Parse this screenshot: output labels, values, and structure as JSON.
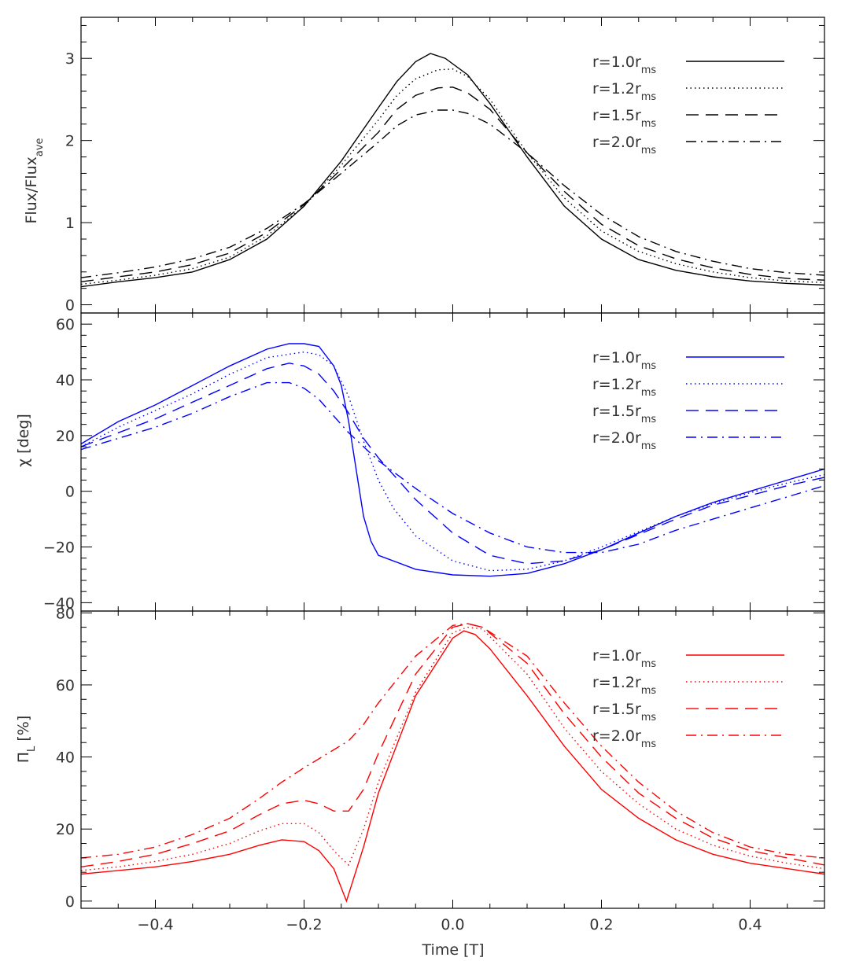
{
  "chart_data": [
    {
      "type": "line",
      "panel": "top",
      "ylabel_main": "Flux/Flux",
      "ylabel_sub": "ave",
      "xlim": [
        -0.5,
        0.5
      ],
      "ylim": [
        -0.1,
        3.5
      ],
      "yticks": [
        0,
        1,
        2,
        3
      ],
      "ytick_labels": [
        "0",
        "1",
        "2",
        "3"
      ],
      "legend_position": "top-right",
      "series": [
        {
          "name": "r=1.0r",
          "sub": "ms",
          "style": "solid",
          "color": "#000000",
          "x": [
            -0.5,
            -0.45,
            -0.4,
            -0.35,
            -0.3,
            -0.25,
            -0.2,
            -0.15,
            -0.1,
            -0.075,
            -0.05,
            -0.03,
            -0.01,
            0.02,
            0.05,
            0.1,
            0.15,
            0.2,
            0.25,
            0.3,
            0.35,
            0.4,
            0.45,
            0.5
          ],
          "y": [
            0.22,
            0.28,
            0.33,
            0.4,
            0.55,
            0.8,
            1.2,
            1.75,
            2.4,
            2.72,
            2.96,
            3.06,
            3.0,
            2.8,
            2.45,
            1.8,
            1.2,
            0.8,
            0.55,
            0.42,
            0.34,
            0.29,
            0.26,
            0.24
          ]
        },
        {
          "name": "r=1.2r",
          "sub": "ms",
          "style": "dotted",
          "color": "#000000",
          "x": [
            -0.5,
            -0.45,
            -0.4,
            -0.35,
            -0.3,
            -0.25,
            -0.2,
            -0.15,
            -0.1,
            -0.075,
            -0.05,
            -0.02,
            0.0,
            0.02,
            0.05,
            0.1,
            0.15,
            0.2,
            0.25,
            0.3,
            0.35,
            0.4,
            0.45,
            0.5
          ],
          "y": [
            0.25,
            0.3,
            0.36,
            0.44,
            0.58,
            0.84,
            1.2,
            1.7,
            2.25,
            2.55,
            2.75,
            2.86,
            2.87,
            2.78,
            2.5,
            1.85,
            1.3,
            0.9,
            0.65,
            0.5,
            0.4,
            0.33,
            0.29,
            0.27
          ]
        },
        {
          "name": "r=1.5r",
          "sub": "ms",
          "style": "dashed",
          "color": "#000000",
          "x": [
            -0.5,
            -0.45,
            -0.4,
            -0.35,
            -0.3,
            -0.25,
            -0.2,
            -0.15,
            -0.1,
            -0.075,
            -0.05,
            -0.02,
            0.0,
            0.02,
            0.05,
            0.1,
            0.15,
            0.2,
            0.25,
            0.3,
            0.35,
            0.4,
            0.45,
            0.5
          ],
          "y": [
            0.28,
            0.34,
            0.4,
            0.49,
            0.63,
            0.88,
            1.22,
            1.65,
            2.1,
            2.38,
            2.55,
            2.64,
            2.65,
            2.58,
            2.38,
            1.85,
            1.38,
            0.98,
            0.72,
            0.56,
            0.45,
            0.37,
            0.32,
            0.3
          ]
        },
        {
          "name": "r=2.0r",
          "sub": "ms",
          "style": "dashdot",
          "color": "#000000",
          "x": [
            -0.5,
            -0.45,
            -0.4,
            -0.35,
            -0.3,
            -0.25,
            -0.2,
            -0.15,
            -0.1,
            -0.075,
            -0.05,
            -0.02,
            0.0,
            0.02,
            0.05,
            0.1,
            0.15,
            0.2,
            0.25,
            0.3,
            0.35,
            0.4,
            0.45,
            0.5
          ],
          "y": [
            0.33,
            0.39,
            0.46,
            0.56,
            0.7,
            0.93,
            1.23,
            1.6,
            1.98,
            2.18,
            2.31,
            2.37,
            2.37,
            2.33,
            2.2,
            1.85,
            1.45,
            1.1,
            0.83,
            0.65,
            0.53,
            0.44,
            0.39,
            0.36
          ]
        }
      ]
    },
    {
      "type": "line",
      "panel": "middle",
      "ylabel_main": "χ [deg]",
      "xlim": [
        -0.5,
        0.5
      ],
      "ylim": [
        -43,
        64
      ],
      "yticks": [
        -40,
        -20,
        0,
        20,
        40,
        60
      ],
      "ytick_labels": [
        "−40",
        "−20",
        "0",
        "20",
        "40",
        "60"
      ],
      "legend_position": "top-right",
      "series": [
        {
          "name": "r=1.0r",
          "sub": "ms",
          "style": "solid",
          "color": "#0000ff",
          "x": [
            -0.5,
            -0.45,
            -0.4,
            -0.35,
            -0.3,
            -0.25,
            -0.22,
            -0.2,
            -0.18,
            -0.16,
            -0.15,
            -0.14,
            -0.13,
            -0.12,
            -0.11,
            -0.1,
            -0.05,
            0.0,
            0.05,
            0.1,
            0.15,
            0.2,
            0.25,
            0.3,
            0.35,
            0.4,
            0.45,
            0.5
          ],
          "y": [
            17,
            25,
            31,
            38,
            45,
            51,
            53,
            53,
            52,
            45,
            38,
            25,
            8,
            -9,
            -18,
            -23,
            -28,
            -30,
            -30.5,
            -29.5,
            -26,
            -21,
            -15,
            -9,
            -4,
            0,
            4,
            8
          ]
        },
        {
          "name": "r=1.2r",
          "sub": "ms",
          "style": "dotted",
          "color": "#0000ff",
          "x": [
            -0.5,
            -0.45,
            -0.4,
            -0.35,
            -0.3,
            -0.25,
            -0.2,
            -0.18,
            -0.16,
            -0.14,
            -0.12,
            -0.1,
            -0.08,
            -0.05,
            0.0,
            0.05,
            0.1,
            0.15,
            0.2,
            0.25,
            0.3,
            0.35,
            0.4,
            0.45,
            0.5
          ],
          "y": [
            16,
            23,
            29,
            35,
            42,
            48,
            50,
            49,
            45,
            34,
            18,
            4,
            -6,
            -16,
            -25,
            -28.5,
            -28,
            -25,
            -20,
            -14.5,
            -9,
            -4.5,
            -0.5,
            3,
            6
          ]
        },
        {
          "name": "r=1.5r",
          "sub": "ms",
          "style": "dashed",
          "color": "#0000ff",
          "x": [
            -0.5,
            -0.45,
            -0.4,
            -0.35,
            -0.3,
            -0.25,
            -0.22,
            -0.2,
            -0.18,
            -0.16,
            -0.14,
            -0.12,
            -0.1,
            -0.05,
            0.0,
            0.05,
            0.1,
            0.15,
            0.2,
            0.25,
            0.3,
            0.35,
            0.4,
            0.45,
            0.5
          ],
          "y": [
            16,
            21,
            26,
            32,
            38,
            44,
            46,
            45,
            42,
            36,
            28,
            19,
            12,
            -3,
            -15,
            -23,
            -26,
            -25,
            -21,
            -15.5,
            -10,
            -5,
            -1.5,
            2,
            5
          ]
        },
        {
          "name": "r=2.0r",
          "sub": "ms",
          "style": "dashdot",
          "color": "#0000ff",
          "x": [
            -0.5,
            -0.45,
            -0.4,
            -0.35,
            -0.3,
            -0.25,
            -0.22,
            -0.2,
            -0.18,
            -0.16,
            -0.14,
            -0.12,
            -0.1,
            -0.05,
            0.0,
            0.05,
            0.1,
            0.15,
            0.2,
            0.25,
            0.3,
            0.35,
            0.4,
            0.45,
            0.5
          ],
          "y": [
            15,
            19,
            23,
            28,
            34,
            39,
            39,
            37,
            33,
            27,
            21,
            16,
            11,
            1,
            -8,
            -15,
            -20,
            -22,
            -22,
            -19,
            -14,
            -10,
            -6,
            -2,
            2
          ]
        }
      ]
    },
    {
      "type": "line",
      "panel": "bottom",
      "ylabel_main": "Π",
      "ylabel_sub": "L",
      "ylabel_rest": " [%]",
      "xlabel": "Time [T]",
      "xlim": [
        -0.5,
        0.5
      ],
      "ylim": [
        -2,
        80.5
      ],
      "xticks": [
        -0.4,
        -0.2,
        0.0,
        0.2,
        0.4
      ],
      "xtick_labels": [
        "−0.4",
        "−0.2",
        "0.0",
        "0.2",
        "0.4"
      ],
      "yticks": [
        0,
        20,
        40,
        60,
        80
      ],
      "ytick_labels": [
        "0",
        "20",
        "40",
        "60",
        "80"
      ],
      "legend_position": "top-right",
      "series": [
        {
          "name": "r=1.0r",
          "sub": "ms",
          "style": "solid",
          "color": "#ff0000",
          "x": [
            -0.5,
            -0.45,
            -0.4,
            -0.35,
            -0.3,
            -0.26,
            -0.23,
            -0.2,
            -0.18,
            -0.16,
            -0.143,
            -0.12,
            -0.1,
            -0.05,
            0.0,
            0.015,
            0.03,
            0.05,
            0.1,
            0.15,
            0.2,
            0.25,
            0.3,
            0.35,
            0.4,
            0.45,
            0.5
          ],
          "y": [
            7.5,
            8.5,
            9.5,
            11,
            13,
            15.5,
            17,
            16.5,
            14,
            9,
            0,
            15,
            30,
            57,
            73,
            75,
            74,
            70,
            57,
            43,
            31,
            23,
            17,
            13,
            10.5,
            9,
            7.5
          ]
        },
        {
          "name": "r=1.2r",
          "sub": "ms",
          "style": "dotted",
          "color": "#ff0000",
          "x": [
            -0.5,
            -0.45,
            -0.4,
            -0.35,
            -0.3,
            -0.26,
            -0.23,
            -0.2,
            -0.18,
            -0.16,
            -0.14,
            -0.12,
            -0.1,
            -0.05,
            0.0,
            0.02,
            0.04,
            0.1,
            0.15,
            0.2,
            0.25,
            0.3,
            0.35,
            0.4,
            0.45,
            0.5
          ],
          "y": [
            8.5,
            9.5,
            11,
            13,
            16,
            19.5,
            21.5,
            21.5,
            19,
            14,
            10,
            20,
            33,
            58,
            74.5,
            76,
            75.5,
            63,
            48,
            36,
            27,
            20,
            15.5,
            12.5,
            10.5,
            9
          ]
        },
        {
          "name": "r=1.5r",
          "sub": "ms",
          "style": "dashed",
          "color": "#ff0000",
          "x": [
            -0.5,
            -0.45,
            -0.4,
            -0.35,
            -0.3,
            -0.26,
            -0.23,
            -0.2,
            -0.18,
            -0.16,
            -0.14,
            -0.12,
            -0.1,
            -0.05,
            0.0,
            0.02,
            0.04,
            0.1,
            0.15,
            0.2,
            0.25,
            0.3,
            0.35,
            0.4,
            0.45,
            0.5
          ],
          "y": [
            9.5,
            11,
            13,
            16,
            19.5,
            24,
            27,
            28,
            27,
            25,
            25,
            31,
            41,
            63,
            76,
            77,
            76,
            66,
            52,
            40,
            30,
            23,
            17.5,
            14,
            12,
            10
          ]
        },
        {
          "name": "r=2.0r",
          "sub": "ms",
          "style": "dashdot",
          "color": "#ff0000",
          "x": [
            -0.5,
            -0.45,
            -0.4,
            -0.35,
            -0.3,
            -0.26,
            -0.23,
            -0.2,
            -0.18,
            -0.16,
            -0.14,
            -0.12,
            -0.1,
            -0.05,
            0.0,
            0.02,
            0.04,
            0.1,
            0.15,
            0.2,
            0.25,
            0.3,
            0.35,
            0.4,
            0.45,
            0.5
          ],
          "y": [
            12,
            13,
            15,
            18.5,
            23,
            28.5,
            33,
            37,
            39.5,
            42,
            44.5,
            49,
            55,
            68,
            76.5,
            77,
            76,
            68,
            55,
            43,
            33,
            25,
            19,
            15,
            13,
            12
          ]
        }
      ]
    }
  ]
}
